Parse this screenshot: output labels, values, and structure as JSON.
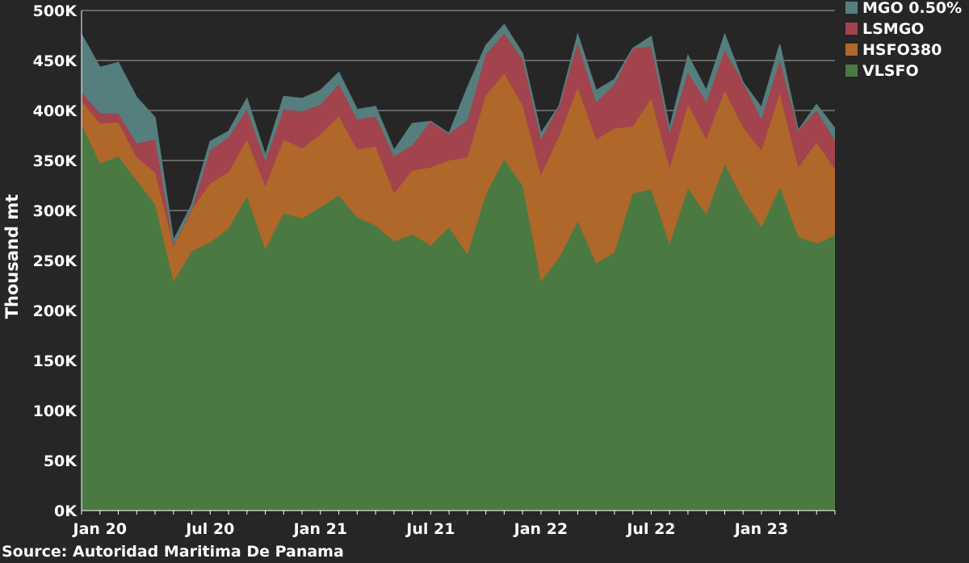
{
  "chart_data": {
    "type": "area",
    "stacked": true,
    "ylabel": "Thousand mt",
    "source": "Source: Autoridad Maritima De Panama",
    "ylim": [
      0,
      500000
    ],
    "yticks": [
      {
        "value": 0,
        "label": "0K"
      },
      {
        "value": 50000,
        "label": "50K"
      },
      {
        "value": 100000,
        "label": "100K"
      },
      {
        "value": 150000,
        "label": "150K"
      },
      {
        "value": 200000,
        "label": "200K"
      },
      {
        "value": 250000,
        "label": "250K"
      },
      {
        "value": 300000,
        "label": "300K"
      },
      {
        "value": 350000,
        "label": "350K"
      },
      {
        "value": 400000,
        "label": "400K"
      },
      {
        "value": 450000,
        "label": "450K"
      },
      {
        "value": 500000,
        "label": "500K"
      }
    ],
    "xticks": [
      {
        "date": "2020-01",
        "label": "Jan 20"
      },
      {
        "date": "2020-07",
        "label": "Jul 20"
      },
      {
        "date": "2021-01",
        "label": "Jan 21"
      },
      {
        "date": "2021-07",
        "label": "Jul 21"
      },
      {
        "date": "2022-01",
        "label": "Jan 22"
      },
      {
        "date": "2022-07",
        "label": "Jul 22"
      },
      {
        "date": "2023-01",
        "label": "Jan 23"
      }
    ],
    "grid": true,
    "legend_position": "top-right",
    "x": [
      "2019-12",
      "2020-01",
      "2020-02",
      "2020-03",
      "2020-04",
      "2020-05",
      "2020-06",
      "2020-07",
      "2020-08",
      "2020-09",
      "2020-10",
      "2020-11",
      "2020-12",
      "2021-01",
      "2021-02",
      "2021-03",
      "2021-04",
      "2021-05",
      "2021-06",
      "2021-07",
      "2021-08",
      "2021-09",
      "2021-10",
      "2021-11",
      "2021-12",
      "2022-01",
      "2022-02",
      "2022-03",
      "2022-04",
      "2022-05",
      "2022-06",
      "2022-07",
      "2022-08",
      "2022-09",
      "2022-10",
      "2022-11",
      "2022-12",
      "2023-01",
      "2023-02",
      "2023-03",
      "2023-04",
      "2023-05"
    ],
    "series": [
      {
        "name": "VLSFO",
        "color": "#4a7a42",
        "values": [
          386000,
          347000,
          354000,
          330000,
          306000,
          229000,
          259000,
          268000,
          282000,
          314000,
          261000,
          297000,
          292000,
          303000,
          315000,
          293000,
          285000,
          269000,
          276000,
          265000,
          283000,
          256000,
          316000,
          351000,
          325000,
          229000,
          253000,
          289000,
          247000,
          258000,
          317000,
          321000,
          266000,
          322000,
          296000,
          346000,
          311000,
          283000,
          323000,
          274000,
          267000,
          275000
        ]
      },
      {
        "name": "HSFO380",
        "color": "#b0672a",
        "values": [
          23000,
          40000,
          34000,
          23000,
          32000,
          36000,
          42000,
          59000,
          56000,
          57000,
          63000,
          74000,
          70000,
          73000,
          79000,
          68000,
          79000,
          48000,
          64000,
          78000,
          67000,
          97000,
          99000,
          86000,
          80000,
          106000,
          122000,
          134000,
          124000,
          124000,
          67000,
          91000,
          76000,
          84000,
          75000,
          74000,
          72000,
          77000,
          94000,
          69000,
          101000,
          66000
        ]
      },
      {
        "name": "LSMGO",
        "color": "#a3434d",
        "values": [
          9000,
          10000,
          9000,
          14000,
          33000,
          0,
          0,
          33000,
          35000,
          30000,
          25000,
          30000,
          37000,
          30000,
          32000,
          30000,
          30000,
          37000,
          25000,
          46000,
          27000,
          37000,
          41000,
          40000,
          46000,
          36000,
          30000,
          44000,
          37000,
          44000,
          78000,
          52000,
          35000,
          32000,
          37000,
          40000,
          45000,
          31000,
          33000,
          37000,
          32000,
          29000
        ]
      },
      {
        "name": "MGO 0.50%",
        "color": "#557f7f",
        "values": [
          58000,
          46000,
          51000,
          46000,
          22000,
          5000,
          5000,
          9000,
          6000,
          11000,
          6000,
          13000,
          13000,
          14000,
          12000,
          10000,
          10000,
          6000,
          22000,
          0,
          0,
          33000,
          9000,
          9000,
          6000,
          6000,
          0,
          9000,
          12000,
          5000,
          0,
          10000,
          5000,
          17000,
          12000,
          16000,
          0,
          12000,
          16000,
          0,
          6000,
          12000
        ]
      }
    ]
  }
}
